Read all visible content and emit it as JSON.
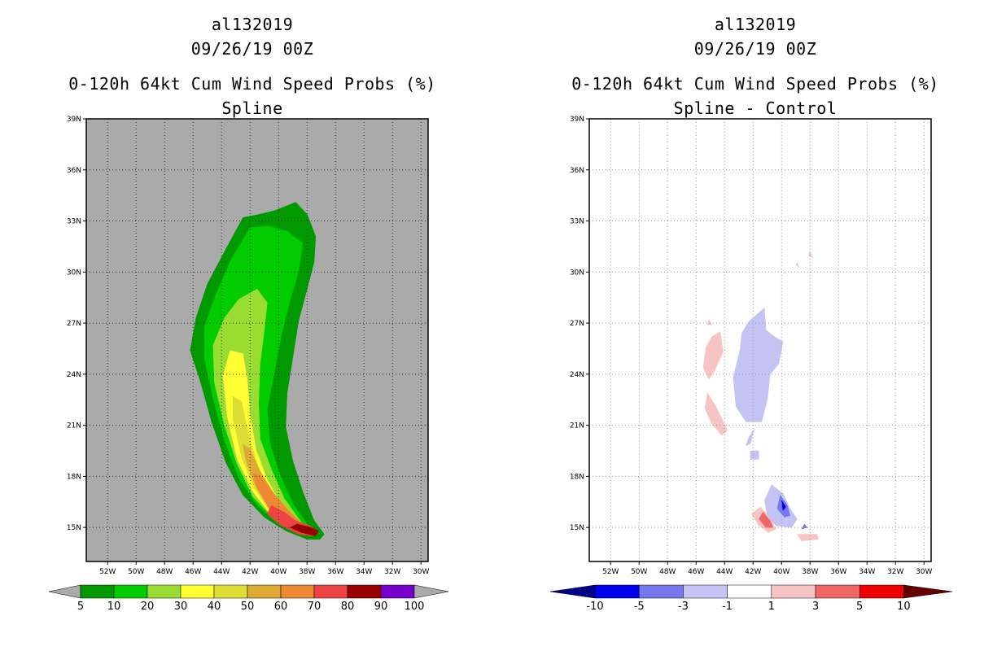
{
  "panels": [
    {
      "storm_id": "al132019",
      "datetime": "09/26/19 00Z",
      "title": "0-120h 64kt Cum Wind Speed Probs (%)",
      "subtitle": "Spline",
      "colorbar": {
        "labels": [
          "5",
          "10",
          "20",
          "30",
          "40",
          "50",
          "60",
          "70",
          "80",
          "90",
          "100"
        ],
        "colors": [
          "#009900",
          "#00cc00",
          "#99dd33",
          "#ffff33",
          "#dddd33",
          "#ddaa33",
          "#ee8833",
          "#ee4444",
          "#990000",
          "#7700cc"
        ]
      }
    },
    {
      "storm_id": "al132019",
      "datetime": "09/26/19 00Z",
      "title": "0-120h 64kt Cum Wind Speed Probs (%)",
      "subtitle": "Spline - Control",
      "colorbar": {
        "labels": [
          "-10",
          "-5",
          "-3",
          "-1",
          "1",
          "3",
          "5",
          "10"
        ],
        "colors": [
          "#0000ee",
          "#7777ee",
          "#c4c4f4",
          "#ffffff",
          "#f7c4c4",
          "#ee6666",
          "#ee0000"
        ]
      }
    }
  ],
  "chart_data": [
    {
      "type": "heatmap",
      "title": "0-120h 64kt Cum Wind Speed Probs (%)",
      "subtitle": "Spline",
      "x_tick_labels": [
        "52W",
        "50W",
        "48W",
        "46W",
        "44W",
        "42W",
        "40W",
        "38W",
        "36W",
        "34W",
        "32W",
        "30W"
      ],
      "y_tick_labels": [
        "15N",
        "18N",
        "21N",
        "24N",
        "27N",
        "30N",
        "33N",
        "36N",
        "39N"
      ],
      "xlim": [
        -53.5,
        -29.5
      ],
      "ylim": [
        13,
        39
      ],
      "contour_levels": [
        5,
        10,
        20,
        30,
        40,
        50,
        60,
        70,
        80,
        90,
        100
      ],
      "regions": [
        {
          "level": 5,
          "color": "#009900",
          "lonlat": [
            [
              -37.1,
              14.3
            ],
            [
              -38,
              14.3
            ],
            [
              -39.5,
              14.8
            ],
            [
              -41,
              15.6
            ],
            [
              -42.5,
              16.9
            ],
            [
              -43.7,
              18.8
            ],
            [
              -44.7,
              21.2
            ],
            [
              -45.5,
              23.6
            ],
            [
              -46.2,
              25.4
            ],
            [
              -45.8,
              27.3
            ],
            [
              -45,
              29.3
            ],
            [
              -43.8,
              31.2
            ],
            [
              -42.5,
              33.2
            ],
            [
              -41.3,
              33.4
            ],
            [
              -40.3,
              33.6
            ],
            [
              -38.8,
              34.1
            ],
            [
              -38,
              33.4
            ],
            [
              -37.4,
              32.1
            ],
            [
              -37.5,
              30.6
            ],
            [
              -38,
              29
            ],
            [
              -38.6,
              27.1
            ],
            [
              -39,
              25
            ],
            [
              -39.4,
              22.9
            ],
            [
              -39.5,
              20.9
            ],
            [
              -39,
              18.9
            ],
            [
              -38.3,
              17.1
            ],
            [
              -37.5,
              15.4
            ],
            [
              -36.8,
              14.6
            ]
          ]
        },
        {
          "level": 10,
          "color": "#00cc00",
          "lonlat": [
            [
              -37.4,
              14.6
            ],
            [
              -38.5,
              14.6
            ],
            [
              -40,
              15.2
            ],
            [
              -41.5,
              16.3
            ],
            [
              -42.8,
              17.9
            ],
            [
              -43.8,
              20.1
            ],
            [
              -44.6,
              22.6
            ],
            [
              -45.2,
              24.9
            ],
            [
              -45.2,
              26.8
            ],
            [
              -44.4,
              28.7
            ],
            [
              -43.3,
              30.8
            ],
            [
              -42,
              32.6
            ],
            [
              -40.7,
              32.7
            ],
            [
              -39.4,
              32.4
            ],
            [
              -38.3,
              31.7
            ],
            [
              -38.6,
              30
            ],
            [
              -39.2,
              28.3
            ],
            [
              -39.8,
              26.3
            ],
            [
              -40.3,
              24.1
            ],
            [
              -40.8,
              21.9
            ],
            [
              -40.6,
              19.9
            ],
            [
              -39.9,
              18.1
            ],
            [
              -39,
              16.4
            ],
            [
              -38,
              15.2
            ]
          ]
        },
        {
          "level": 20,
          "color": "#99dd33",
          "lonlat": [
            [
              -37.5,
              14.7
            ],
            [
              -38.8,
              14.8
            ],
            [
              -40.2,
              15.4
            ],
            [
              -41.8,
              16.8
            ],
            [
              -42.9,
              18.7
            ],
            [
              -43.8,
              21
            ],
            [
              -44.5,
              23.5
            ],
            [
              -44.6,
              25.7
            ],
            [
              -43.8,
              27.3
            ],
            [
              -42.8,
              28.4
            ],
            [
              -41.5,
              29
            ],
            [
              -40.8,
              28.2
            ],
            [
              -41,
              26.6
            ],
            [
              -41.3,
              24.6
            ],
            [
              -41.4,
              22.3
            ],
            [
              -41.3,
              20.2
            ],
            [
              -40.5,
              18.4
            ],
            [
              -39.6,
              16.7
            ],
            [
              -38.4,
              15.3
            ]
          ]
        },
        {
          "level": 30,
          "color": "#ffff33",
          "lonlat": [
            [
              -37.7,
              14.8
            ],
            [
              -39,
              15
            ],
            [
              -40.4,
              15.6
            ],
            [
              -41.8,
              17.1
            ],
            [
              -42.9,
              19
            ],
            [
              -43.6,
              21.5
            ],
            [
              -43.9,
              23.9
            ],
            [
              -43.4,
              25.4
            ],
            [
              -42.5,
              25.2
            ],
            [
              -42.2,
              23.7
            ],
            [
              -42,
              21.6
            ],
            [
              -41.6,
              19.6
            ],
            [
              -40.8,
              17.8
            ],
            [
              -39.7,
              16.2
            ],
            [
              -38.5,
              15.2
            ]
          ]
        },
        {
          "level": 40,
          "color": "#dddd33",
          "lonlat": [
            [
              -37.8,
              14.8
            ],
            [
              -39.2,
              15.1
            ],
            [
              -40.5,
              15.8
            ],
            [
              -41.7,
              17.3
            ],
            [
              -42.6,
              19.1
            ],
            [
              -43.2,
              21.4
            ],
            [
              -43.2,
              22.7
            ],
            [
              -42.6,
              22.4
            ],
            [
              -42.1,
              20.4
            ],
            [
              -41.4,
              18.5
            ],
            [
              -40.4,
              16.9
            ],
            [
              -39.2,
              15.7
            ],
            [
              -38.2,
              15.1
            ]
          ]
        },
        {
          "level": 50,
          "color": "#ddaa33",
          "lonlat": [
            [
              -37.9,
              14.8
            ],
            [
              -39.3,
              15.2
            ],
            [
              -40.5,
              15.9
            ],
            [
              -41.6,
              17.4
            ],
            [
              -42.3,
              18.9
            ],
            [
              -42.5,
              19.9
            ],
            [
              -42,
              19.6
            ],
            [
              -41.3,
              18.3
            ],
            [
              -40.4,
              17.1
            ],
            [
              -39.2,
              15.9
            ],
            [
              -38.3,
              15.2
            ]
          ]
        },
        {
          "level": 60,
          "color": "#ee8833",
          "lonlat": [
            [
              -38,
              14.8
            ],
            [
              -39.4,
              15.2
            ],
            [
              -40.6,
              16
            ],
            [
              -41.5,
              17.3
            ],
            [
              -41.8,
              18.2
            ],
            [
              -41.2,
              18
            ],
            [
              -40.3,
              16.9
            ],
            [
              -39.3,
              16
            ],
            [
              -38.5,
              15.3
            ]
          ]
        },
        {
          "level": 70,
          "color": "#ee4444",
          "lonlat": [
            [
              -37.6,
              14.5
            ],
            [
              -38.6,
              14.6
            ],
            [
              -39.8,
              15.1
            ],
            [
              -40.8,
              15.8
            ],
            [
              -40.5,
              16.3
            ],
            [
              -39.6,
              15.9
            ],
            [
              -38.8,
              15.4
            ],
            [
              -37.8,
              15.1
            ],
            [
              -37.3,
              14.8
            ]
          ]
        },
        {
          "level": 80,
          "color": "#990000",
          "lonlat": [
            [
              -37.4,
              14.5
            ],
            [
              -38.4,
              14.7
            ],
            [
              -39.2,
              15
            ],
            [
              -38.7,
              15.2
            ],
            [
              -37.7,
              15
            ],
            [
              -37.2,
              14.8
            ]
          ]
        }
      ]
    },
    {
      "type": "heatmap",
      "title": "0-120h 64kt Cum Wind Speed Probs (%)",
      "subtitle": "Spline - Control",
      "x_tick_labels": [
        "52W",
        "50W",
        "48W",
        "46W",
        "44W",
        "42W",
        "40W",
        "38W",
        "36W",
        "34W",
        "32W",
        "30W"
      ],
      "y_tick_labels": [
        "15N",
        "18N",
        "21N",
        "24N",
        "27N",
        "30N",
        "33N",
        "36N",
        "39N"
      ],
      "xlim": [
        -53.5,
        -29.5
      ],
      "ylim": [
        13,
        39
      ],
      "contour_levels": [
        -10,
        -5,
        -3,
        -1,
        1,
        3,
        5,
        10
      ],
      "regions": [
        {
          "level": 1,
          "color": "#f7c4c4",
          "lonlat": [
            [
              -45.3,
              25.6
            ],
            [
              -44.9,
              26.2
            ],
            [
              -44.3,
              26.5
            ],
            [
              -44.1,
              25.3
            ],
            [
              -44.7,
              24.2
            ],
            [
              -45.1,
              23.7
            ],
            [
              -45.5,
              24.4
            ]
          ]
        },
        {
          "level": 1,
          "color": "#f7c4c4",
          "lonlat": [
            [
              -45.2,
              22.9
            ],
            [
              -44.6,
              22.1
            ],
            [
              -44.2,
              21.4
            ],
            [
              -43.8,
              20.7
            ],
            [
              -44.2,
              20.4
            ],
            [
              -44.9,
              21.1
            ],
            [
              -45.4,
              22
            ]
          ]
        },
        {
          "level": 1,
          "color": "#f7c4c4",
          "lonlat": [
            [
              -45.1,
              27.2
            ],
            [
              -44.9,
              26.9
            ],
            [
              -45.2,
              26.9
            ]
          ]
        },
        {
          "level": 1,
          "color": "#f7c4c4",
          "lonlat": [
            [
              -38.1,
              31
            ],
            [
              -37.8,
              30.8
            ],
            [
              -38,
              31.2
            ]
          ]
        },
        {
          "level": 1,
          "color": "#f7c4c4",
          "lonlat": [
            [
              -39,
              30.4
            ],
            [
              -38.8,
              30.3
            ],
            [
              -38.9,
              30.6
            ]
          ]
        },
        {
          "level": 1,
          "color": "#f7c4c4",
          "lonlat": [
            [
              -41.5,
              16.2
            ],
            [
              -40.8,
              15.6
            ],
            [
              -40.4,
              14.9
            ],
            [
              -40.9,
              14.7
            ],
            [
              -41.6,
              15.1
            ],
            [
              -42.1,
              15.8
            ]
          ]
        },
        {
          "level": 1,
          "color": "#f7c4c4",
          "lonlat": [
            [
              -38.9,
              14.6
            ],
            [
              -37.5,
              14.6
            ],
            [
              -37.4,
              14.3
            ],
            [
              -38.6,
              14.2
            ]
          ]
        },
        {
          "level": 3,
          "color": "#ee6666",
          "lonlat": [
            [
              -41.3,
              15.9
            ],
            [
              -40.8,
              15.4
            ],
            [
              -40.6,
              15
            ],
            [
              -41.1,
              15
            ],
            [
              -41.6,
              15.5
            ]
          ]
        },
        {
          "level": -1,
          "color": "#c4c4f4",
          "lonlat": [
            [
              -42.3,
              27.1
            ],
            [
              -41.2,
              27.9
            ],
            [
              -41.1,
              26.6
            ],
            [
              -40.5,
              26.2
            ],
            [
              -39.9,
              25.9
            ],
            [
              -40.2,
              24.6
            ],
            [
              -40.8,
              24
            ],
            [
              -41,
              22.5
            ],
            [
              -41.4,
              21.2
            ],
            [
              -42.5,
              21.2
            ],
            [
              -43.2,
              22.1
            ],
            [
              -43.4,
              23.8
            ],
            [
              -42.9,
              25.5
            ],
            [
              -42.8,
              26.4
            ]
          ]
        },
        {
          "level": -1,
          "color": "#c4c4f4",
          "lonlat": [
            [
              -42.3,
              20.3
            ],
            [
              -41.9,
              20.8
            ],
            [
              -42.2,
              19.9
            ],
            [
              -42.5,
              19.8
            ]
          ]
        },
        {
          "level": -1,
          "color": "#c4c4f4",
          "lonlat": [
            [
              -42.2,
              19.5
            ],
            [
              -41.6,
              19.5
            ],
            [
              -41.6,
              19
            ],
            [
              -42.2,
              19
            ]
          ]
        },
        {
          "level": -1,
          "color": "#c4c4f4",
          "lonlat": [
            [
              -40.7,
              17.5
            ],
            [
              -39.9,
              17
            ],
            [
              -39.4,
              16.1
            ],
            [
              -38.9,
              15.5
            ],
            [
              -39.3,
              15
            ],
            [
              -40.4,
              15.1
            ],
            [
              -41,
              15.7
            ],
            [
              -41.2,
              16.6
            ]
          ]
        },
        {
          "level": -3,
          "color": "#7777ee",
          "lonlat": [
            [
              -40.1,
              16.9
            ],
            [
              -39.6,
              16.3
            ],
            [
              -39.4,
              15.7
            ],
            [
              -39.8,
              15.6
            ],
            [
              -40.3,
              16.1
            ]
          ]
        },
        {
          "level": -5,
          "color": "#0000ee",
          "lonlat": [
            [
              -40,
              16.6
            ],
            [
              -39.7,
              16.2
            ],
            [
              -39.9,
              16
            ]
          ]
        },
        {
          "level": -3,
          "color": "#7777ee",
          "lonlat": [
            [
              -38.2,
              15
            ],
            [
              -38.6,
              14.9
            ],
            [
              -38.4,
              15.2
            ]
          ]
        }
      ]
    }
  ]
}
